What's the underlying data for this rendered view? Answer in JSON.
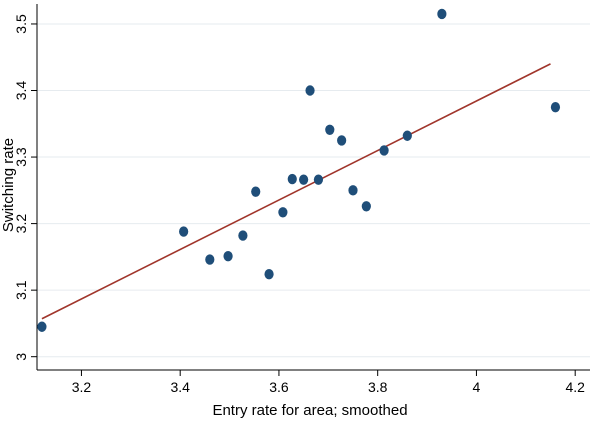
{
  "chart_data": {
    "type": "scatter",
    "title": "",
    "xlabel": "Entry rate for area; smoothed",
    "ylabel": "Switching rate",
    "xlim": [
      3.11,
      4.23
    ],
    "ylim": [
      2.98,
      3.53
    ],
    "xticks": [
      3.2,
      3.4,
      3.6,
      3.8,
      4,
      4.2
    ],
    "xtick_labels": [
      "3.2",
      "3.4",
      "3.6",
      "3.8",
      "4",
      "4.2"
    ],
    "yticks": [
      3,
      3.1,
      3.2,
      3.3,
      3.4,
      3.5
    ],
    "ytick_labels": [
      "3",
      "3.1",
      "3.2",
      "3.3",
      "3.4",
      "3.5"
    ],
    "grid": true,
    "colors": {
      "markers": "#1f4e79",
      "fit_line": "#a0352b",
      "grid": "#e6ebef"
    },
    "points": [
      {
        "x": 3.12,
        "y": 3.045
      },
      {
        "x": 3.407,
        "y": 3.188
      },
      {
        "x": 3.46,
        "y": 3.146
      },
      {
        "x": 3.497,
        "y": 3.151
      },
      {
        "x": 3.527,
        "y": 3.182
      },
      {
        "x": 3.553,
        "y": 3.248
      },
      {
        "x": 3.58,
        "y": 3.124
      },
      {
        "x": 3.608,
        "y": 3.217
      },
      {
        "x": 3.627,
        "y": 3.267
      },
      {
        "x": 3.65,
        "y": 3.266
      },
      {
        "x": 3.663,
        "y": 3.4
      },
      {
        "x": 3.68,
        "y": 3.266
      },
      {
        "x": 3.703,
        "y": 3.341
      },
      {
        "x": 3.727,
        "y": 3.325
      },
      {
        "x": 3.75,
        "y": 3.25
      },
      {
        "x": 3.777,
        "y": 3.226
      },
      {
        "x": 3.813,
        "y": 3.31
      },
      {
        "x": 3.86,
        "y": 3.332
      },
      {
        "x": 3.93,
        "y": 3.515
      },
      {
        "x": 4.16,
        "y": 3.375
      }
    ],
    "fit_line": {
      "x": [
        3.12,
        4.15
      ],
      "y": [
        3.057,
        3.44
      ]
    }
  }
}
